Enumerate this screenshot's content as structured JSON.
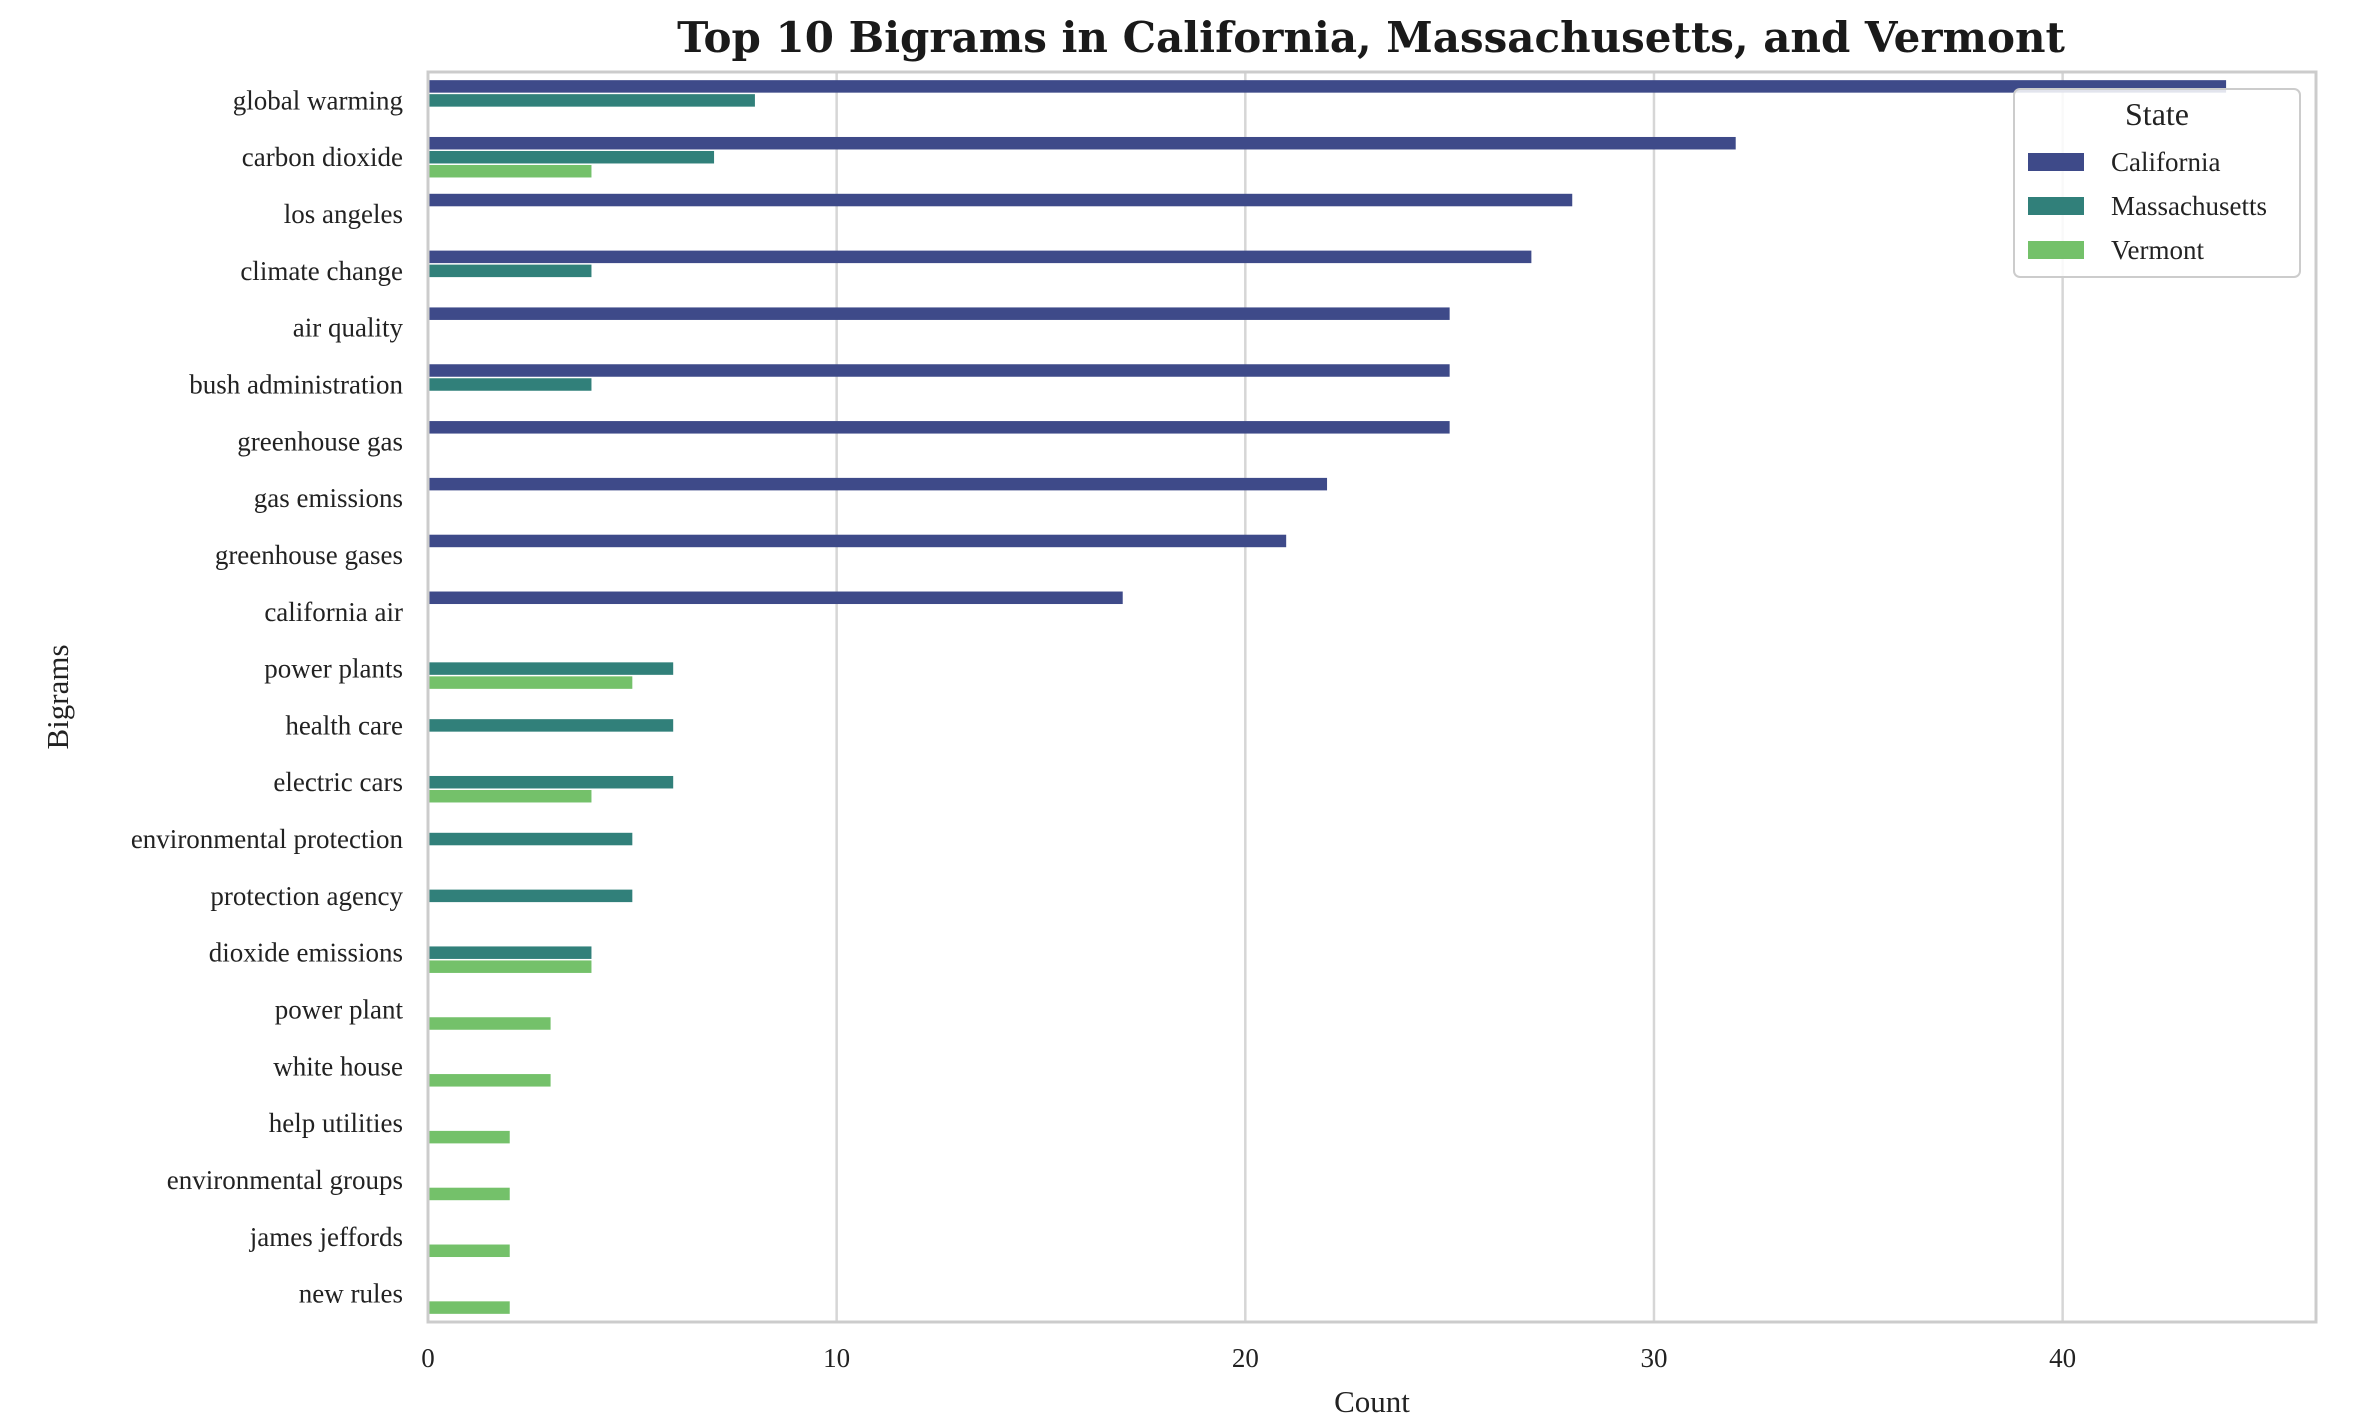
{
  "chart_data": {
    "type": "bar",
    "orientation": "horizontal",
    "title": "Top 10 Bigrams in California, Massachusetts, and Vermont",
    "xlabel": "Count",
    "ylabel": "Bigrams",
    "xlim": [
      0,
      46.2
    ],
    "xticks": [
      0,
      10,
      20,
      30,
      40
    ],
    "grid": "vertical",
    "legend": {
      "title": "State",
      "placement": "top-right"
    },
    "categories": [
      "global warming",
      "carbon dioxide",
      "los angeles",
      "climate change",
      "air quality",
      "bush administration",
      "greenhouse gas",
      "gas emissions",
      "greenhouse gases",
      "california air",
      "power plants",
      "health care",
      "electric cars",
      "environmental protection",
      "protection agency",
      "dioxide emissions",
      "power plant",
      "white house",
      "help utilities",
      "environmental groups",
      "james jeffords",
      "new rules"
    ],
    "series": [
      {
        "name": "California",
        "color": "#3e4a89",
        "values": [
          44,
          32,
          28,
          27,
          25,
          25,
          25,
          22,
          21,
          17,
          null,
          null,
          null,
          null,
          null,
          null,
          null,
          null,
          null,
          null,
          null,
          null
        ]
      },
      {
        "name": "Massachusetts",
        "color": "#31807a",
        "values": [
          8,
          7,
          null,
          4,
          null,
          4,
          null,
          null,
          null,
          null,
          6,
          6,
          6,
          5,
          5,
          4,
          null,
          null,
          null,
          null,
          null,
          null
        ]
      },
      {
        "name": "Vermont",
        "color": "#74c16a",
        "values": [
          null,
          4,
          null,
          null,
          null,
          null,
          null,
          null,
          null,
          null,
          5,
          null,
          4,
          null,
          null,
          4,
          3,
          3,
          2,
          2,
          2,
          2
        ]
      }
    ]
  }
}
